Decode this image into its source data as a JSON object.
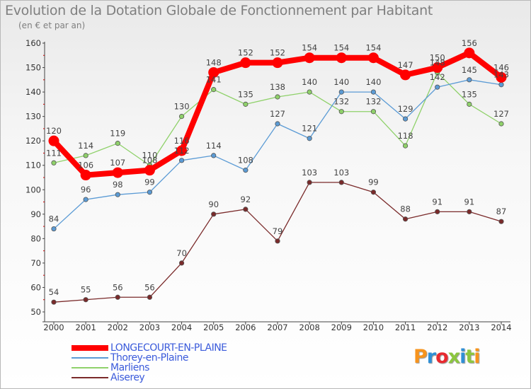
{
  "chart_data": {
    "type": "line",
    "title": "Evolution de la Dotation Globale de Fonctionnement par Habitant",
    "subtitle": "(en € et par an)",
    "x": [
      "2000",
      "2001",
      "2002",
      "2003",
      "2004",
      "2005",
      "2006",
      "2007",
      "2008",
      "2009",
      "2010",
      "2011",
      "2012",
      "2013",
      "2014"
    ],
    "yticks": [
      "50",
      "60",
      "70",
      "80",
      "90",
      "100",
      "110",
      "120",
      "130",
      "140",
      "150",
      "160"
    ],
    "ylim": [
      50,
      160
    ],
    "grid": false,
    "legend_position": "bottom-left",
    "series": [
      {
        "name": "LONGECOURT-EN-PLAINE",
        "color": "#ff0000",
        "label_color": "#3b5bdb",
        "values": [
          120,
          106,
          107,
          108,
          116,
          148,
          152,
          152,
          154,
          154,
          154,
          147,
          150,
          156,
          146
        ],
        "labels": [
          "120",
          "106",
          "107",
          "108",
          "116",
          "148",
          "152",
          "152",
          "154",
          "154",
          "154",
          "147",
          "150",
          "156",
          "146"
        ]
      },
      {
        "name": "Thorey-en-Plaine",
        "color": "#5b9bd5",
        "label_color": "#3b5bdb",
        "values": [
          84,
          96,
          98,
          99,
          112,
          114,
          108,
          127,
          121,
          140,
          140,
          129,
          142,
          145,
          143
        ],
        "labels": [
          "84",
          "96",
          "98",
          "99",
          "112",
          "114",
          "108",
          "127",
          "121",
          "140",
          "140",
          "129",
          "142",
          "145",
          "143"
        ]
      },
      {
        "name": "Marliens",
        "color": "#8fd16a",
        "label_color": "#3b5bdb",
        "values": [
          111,
          114,
          119,
          110,
          130,
          141,
          135,
          138,
          140,
          132,
          132,
          118,
          148,
          135,
          127
        ],
        "labels": [
          "111",
          "114",
          "119",
          "110",
          "130",
          "141",
          "135",
          "138",
          "140",
          "132",
          "132",
          "118",
          "148",
          "135",
          "127"
        ]
      },
      {
        "name": "Aiserey",
        "color": "#7a2a2a",
        "label_color": "#3b5bdb",
        "values": [
          54,
          55,
          56,
          56,
          70,
          90,
          92,
          79,
          103,
          103,
          99,
          88,
          91,
          91,
          87
        ],
        "labels": [
          "54",
          "55",
          "56",
          "56",
          "70",
          "90",
          "92",
          "79",
          "103",
          "103",
          "99",
          "88",
          "91",
          "91",
          "87"
        ]
      }
    ]
  },
  "logo": {
    "text": "Proxiti",
    "colors": [
      "#f7941d",
      "#2f8fd6",
      "#e8292f",
      "#8cc63f",
      "#2f8fd6",
      "#8cc63f",
      "#f7941d"
    ]
  }
}
